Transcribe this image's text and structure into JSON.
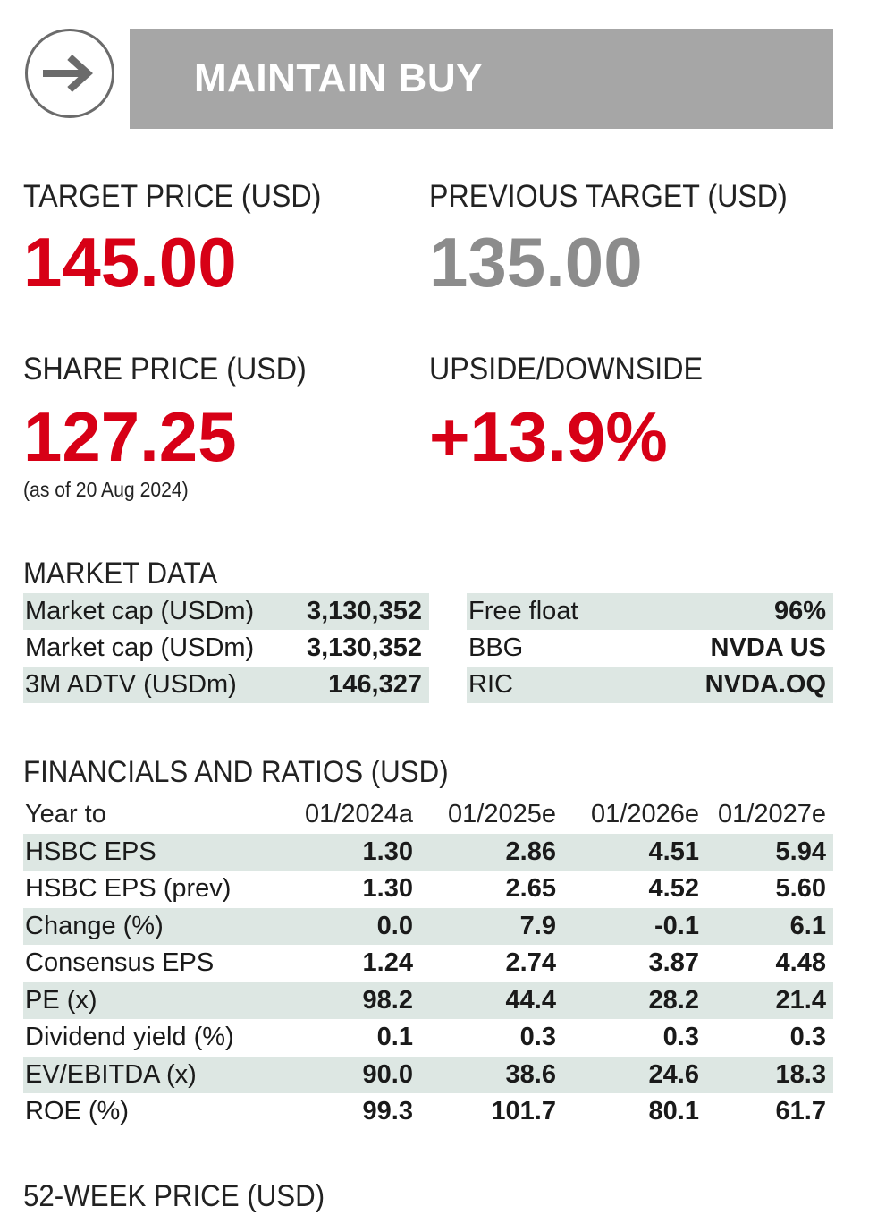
{
  "rating": {
    "label": "MAINTAIN BUY",
    "icon": "right-arrow-icon"
  },
  "prices": {
    "target_label": "TARGET PRICE (USD)",
    "target_value": "145.00",
    "previous_label": "PREVIOUS TARGET (USD)",
    "previous_value": "135.00",
    "share_label": "SHARE PRICE (USD)",
    "share_value": "127.25",
    "share_note": "(as of 20 Aug 2024)",
    "upside_label": "UPSIDE/DOWNSIDE",
    "upside_value": "+13.9%"
  },
  "market_data": {
    "title": "MARKET DATA",
    "left": [
      {
        "label": "Market cap (USDm)",
        "value": "3,130,352"
      },
      {
        "label": "Market cap (USDm)",
        "value": "3,130,352"
      },
      {
        "label": "3M ADTV (USDm)",
        "value": "146,327"
      }
    ],
    "right": [
      {
        "label": "Free float",
        "value": "96%"
      },
      {
        "label": "BBG",
        "value": "NVDA US"
      },
      {
        "label": "RIC",
        "value": "NVDA.OQ"
      }
    ]
  },
  "financials": {
    "title": "FINANCIALS AND RATIOS (USD)",
    "headers": [
      "Year to",
      "01/2024a",
      "01/2025e",
      "01/2026e",
      "01/2027e"
    ],
    "rows": [
      [
        "HSBC EPS",
        "1.30",
        "2.86",
        "4.51",
        "5.94"
      ],
      [
        "HSBC EPS (prev)",
        "1.30",
        "2.65",
        "4.52",
        "5.60"
      ],
      [
        "Change (%)",
        "0.0",
        "7.9",
        "-0.1",
        "6.1"
      ],
      [
        "Consensus EPS",
        "1.24",
        "2.74",
        "3.87",
        "4.48"
      ],
      [
        "PE (x)",
        "98.2",
        "44.4",
        "28.2",
        "21.4"
      ],
      [
        "Dividend yield (%)",
        "0.1",
        "0.3",
        "0.3",
        "0.3"
      ],
      [
        "EV/EBITDA (x)",
        "90.0",
        "38.6",
        "24.6",
        "18.3"
      ],
      [
        "ROE (%)",
        "99.3",
        "101.7",
        "80.1",
        "61.7"
      ]
    ]
  },
  "week52": {
    "title": "52-WEEK PRICE (USD)"
  },
  "colors": {
    "accent_red": "#d70016",
    "muted_grey": "#8c8c8c",
    "row_shade": "#dde7e3",
    "rating_bar": "#a6a6a6"
  }
}
